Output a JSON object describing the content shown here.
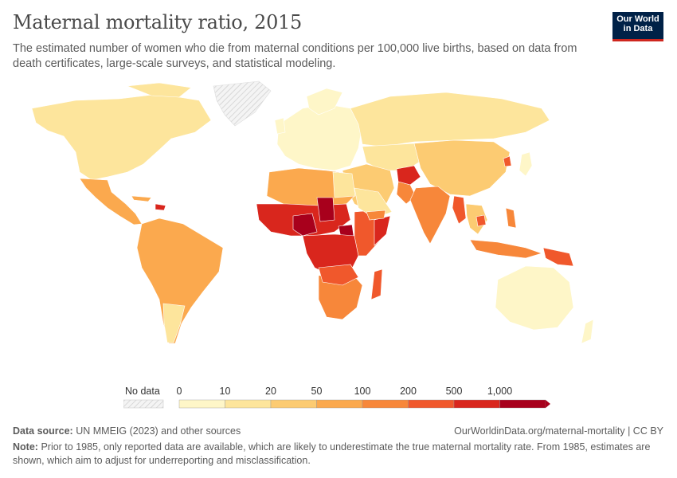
{
  "header": {
    "title": "Maternal mortality ratio, 2015",
    "subtitle": "The estimated number of women who die from maternal conditions per 100,000 live births, based on data from death certificates, large-scale surveys, and statistical modeling.",
    "logo_line1": "Our World",
    "logo_line2": "in Data"
  },
  "legend": {
    "no_data_label": "No data",
    "ticks": [
      "0",
      "10",
      "20",
      "50",
      "100",
      "200",
      "500",
      "1,000"
    ],
    "bin_colors": [
      "#fef6c8",
      "#fde59c",
      "#fccb72",
      "#fba94e",
      "#f7873a",
      "#f0582c",
      "#d9261d",
      "#a8001c"
    ]
  },
  "map": {
    "regions": [
      {
        "name": "North America",
        "color": "#fde59c"
      },
      {
        "name": "Greenland",
        "color": "no-data"
      },
      {
        "name": "Central America",
        "color": "#fba94e"
      },
      {
        "name": "South America",
        "color": "#fba94e"
      },
      {
        "name": "Europe",
        "color": "#fef6c8"
      },
      {
        "name": "Russia",
        "color": "#fde59c"
      },
      {
        "name": "Middle East",
        "color": "#fccb72"
      },
      {
        "name": "North Africa",
        "color": "#fba94e"
      },
      {
        "name": "Sahel",
        "color": "#d9261d"
      },
      {
        "name": "Central Africa",
        "color": "#d9261d"
      },
      {
        "name": "East Africa",
        "color": "#f0582c"
      },
      {
        "name": "Southern Africa",
        "color": "#f7873a"
      },
      {
        "name": "South Asia",
        "color": "#f7873a"
      },
      {
        "name": "Afghanistan",
        "color": "#d9261d"
      },
      {
        "name": "China",
        "color": "#fccb72"
      },
      {
        "name": "Southeast Asia",
        "color": "#f7873a"
      },
      {
        "name": "Papua New Guinea",
        "color": "#f0582c"
      },
      {
        "name": "Australia",
        "color": "#fef6c8"
      }
    ]
  },
  "footer": {
    "source_label": "Data source:",
    "source_text": "UN MMEIG (2023) and other sources",
    "url": "OurWorldinData.org/maternal-mortality | CC BY",
    "note_label": "Note:",
    "note_text": "Prior to 1985, only reported data are available, which are likely to underestimate the true maternal mortality rate. From 1985, estimates are shown, which aim to adjust for underreporting and misclassification."
  }
}
